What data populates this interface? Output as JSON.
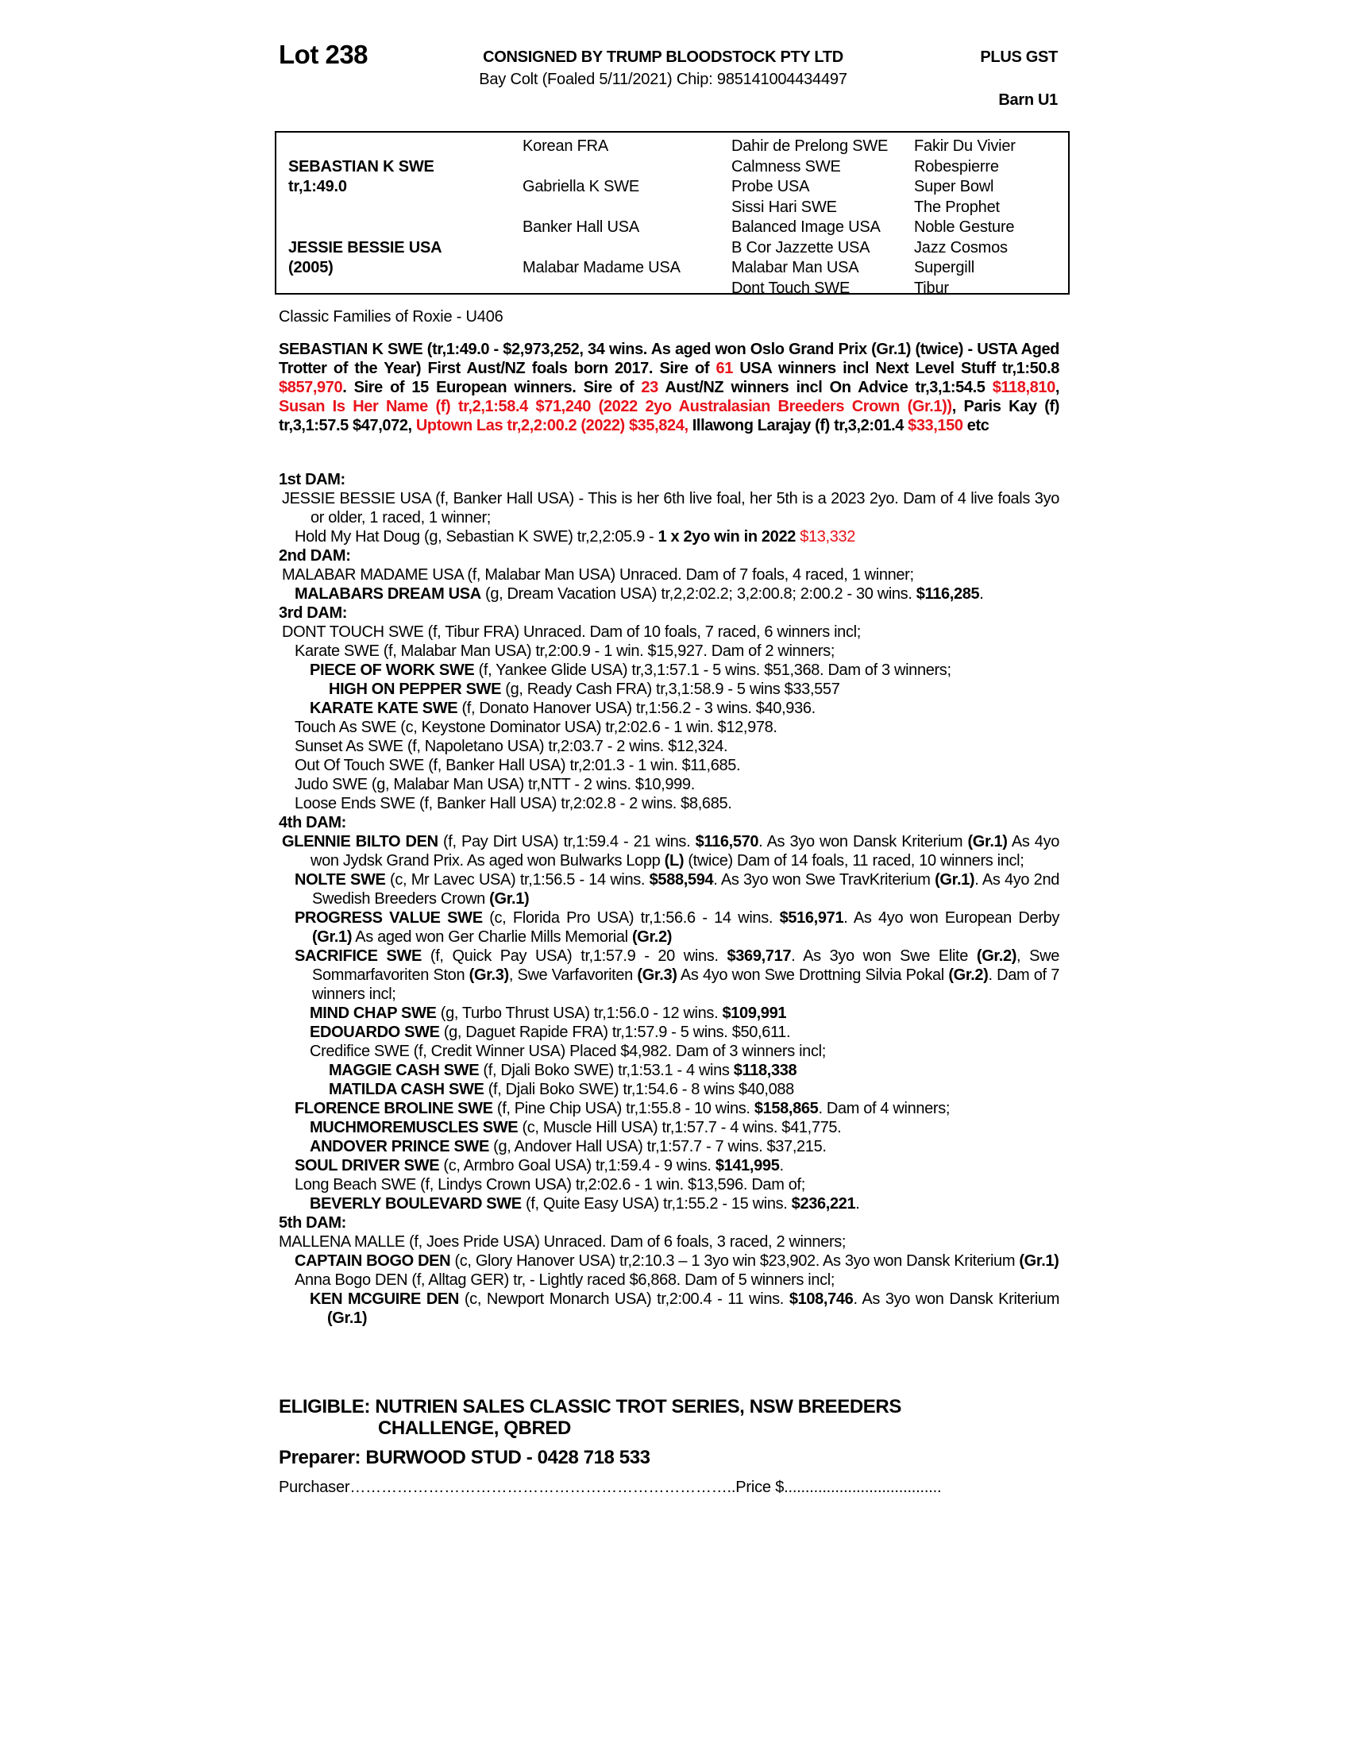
{
  "header": {
    "lot": "Lot 238",
    "consignor": "CONSIGNED BY TRUMP BLOODSTOCK PTY LTD",
    "gst": "PLUS GST",
    "description": "Bay Colt (Foaled 5/11/2021) Chip: 985141004434497",
    "barn": "Barn U1"
  },
  "pedigree": {
    "sire": [
      "SEBASTIAN K SWE",
      "tr,1:49.0"
    ],
    "dam": [
      "JESSIE BESSIE USA",
      "(2005)"
    ],
    "gen2": [
      "Korean FRA",
      "Gabriella K SWE",
      "Banker Hall USA",
      "Malabar Madame USA"
    ],
    "gen3": [
      "Dahir de Prelong SWE",
      "Calmness SWE",
      "Probe USA",
      "Sissi Hari SWE",
      "Balanced Image USA",
      "B Cor Jazzette USA",
      "Malabar Man USA",
      "Dont Touch SWE"
    ],
    "gen4": [
      "Fakir Du Vivier",
      "Robespierre",
      "Super Bowl",
      "The Prophet",
      "Noble Gesture",
      "Jazz Cosmos",
      "Supergill",
      "Tibur"
    ]
  },
  "family": "Classic Families of Roxie - U406",
  "sire_paragraph": [
    {
      "t": "SEBASTIAN K SWE (tr,1:49.0 - $2,973,252, 34 wins. As aged won Oslo Grand Prix (Gr.1) (twice) - USTA Aged Trotter of the Year) First Aust/NZ foals born 2017. Sire of "
    },
    {
      "t": "61",
      "s": "r"
    },
    {
      "t": " USA winners incl Next Level Stuff tr,1:50.8 "
    },
    {
      "t": "$857,970",
      "s": "r"
    },
    {
      "t": ". Sire of 15 European winners. Sire of "
    },
    {
      "t": "23",
      "s": "r"
    },
    {
      "t": " Aust/NZ winners incl On Advice tr,3,1:54.5 "
    },
    {
      "t": "$118,810",
      "s": "r"
    },
    {
      "t": ", "
    },
    {
      "t": "Susan Is Her Name (f) tr,2,1:58.4 $71,240 (2022 2yo Australasian Breeders Crown (Gr.1))",
      "s": "r"
    },
    {
      "t": ", Paris Kay (f) tr,3,1:57.5 $47,072, "
    },
    {
      "t": "Uptown Las tr,2,2:00.2 (2022) $35,824,",
      "s": "r"
    },
    {
      "t": " Illawong Larajay (f) tr,3,2:01.4 "
    },
    {
      "t": "$33,150",
      "s": "r"
    },
    {
      "t": " etc"
    }
  ],
  "sections": [
    {
      "heading": "1st DAM:",
      "entries": [
        {
          "level": 0,
          "segs": [
            {
              "t": "JESSIE BESSIE USA (f, Banker Hall USA) - This is her 6th live foal, her 5th is a 2023 2yo. Dam of 4 live foals 3yo or older, 1 raced, 1 winner;"
            }
          ]
        },
        {
          "level": 1,
          "segs": [
            {
              "t": "Hold My Hat Doug (g, Sebastian K SWE) tr,2,2:05.9 - "
            },
            {
              "t": "1 x 2yo win in 2022",
              "s": "b"
            },
            {
              "t": " "
            },
            {
              "t": "$13,332",
              "s": "r"
            }
          ]
        }
      ]
    },
    {
      "heading": "2nd DAM:",
      "entries": [
        {
          "level": 0,
          "segs": [
            {
              "t": "MALABAR MADAME USA (f, Malabar Man USA) Unraced. Dam of 7 foals, 4 raced, 1 winner;"
            }
          ]
        },
        {
          "level": 1,
          "segs": [
            {
              "t": "MALABARS DREAM USA",
              "s": "b"
            },
            {
              "t": " (g, Dream Vacation USA) tr,2,2:02.2; 3,2:00.8; 2:00.2 - 30 wins. "
            },
            {
              "t": "$116,285",
              "s": "b"
            },
            {
              "t": "."
            }
          ]
        }
      ]
    },
    {
      "heading": "3rd DAM:",
      "entries": [
        {
          "level": 0,
          "segs": [
            {
              "t": "DONT TOUCH SWE (f, Tibur FRA) Unraced. Dam of 10 foals, 7 raced, 6 winners incl;"
            }
          ]
        },
        {
          "level": 1,
          "segs": [
            {
              "t": "Karate SWE (f, Malabar Man USA) tr,2:00.9 - 1 win. $15,927. Dam of 2 winners;"
            }
          ]
        },
        {
          "level": 2,
          "segs": [
            {
              "t": "PIECE OF WORK SWE",
              "s": "b"
            },
            {
              "t": " (f, Yankee Glide USA) tr,3,1:57.1 - 5 wins. $51,368. Dam of 3 winners;"
            }
          ]
        },
        {
          "level": 3,
          "segs": [
            {
              "t": "HIGH ON PEPPER SWE",
              "s": "b"
            },
            {
              "t": " (g, Ready Cash FRA) tr,3,1:58.9 - 5 wins $33,557"
            }
          ]
        },
        {
          "level": 2,
          "segs": [
            {
              "t": "KARATE KATE SWE",
              "s": "b"
            },
            {
              "t": " (f, Donato Hanover USA) tr,1:56.2 - 3 wins. $40,936."
            }
          ]
        },
        {
          "level": 1,
          "segs": [
            {
              "t": "Touch As SWE (c, Keystone Dominator USA) tr,2:02.6 - 1 win. $12,978."
            }
          ]
        },
        {
          "level": 1,
          "segs": [
            {
              "t": "Sunset As SWE (f, Napoletano USA) tr,2:03.7 - 2 wins. $12,324."
            }
          ]
        },
        {
          "level": 1,
          "segs": [
            {
              "t": "Out Of Touch SWE (f, Banker Hall USA) tr,2:01.3 - 1 win. $11,685."
            }
          ]
        },
        {
          "level": 1,
          "segs": [
            {
              "t": "Judo SWE (g, Malabar Man USA) tr,NTT - 2 wins. $10,999."
            }
          ]
        },
        {
          "level": 1,
          "segs": [
            {
              "t": "Loose Ends SWE (f, Banker Hall USA) tr,2:02.8 - 2 wins. $8,685."
            }
          ]
        }
      ]
    },
    {
      "heading": "4th DAM:",
      "entries": [
        {
          "level": 0,
          "segs": [
            {
              "t": "GLENNIE BILTO DEN",
              "s": "b"
            },
            {
              "t": " (f, Pay Dirt USA) tr,1:59.4 - 21 wins. "
            },
            {
              "t": "$116,570",
              "s": "b"
            },
            {
              "t": ". As 3yo won Dansk Kriterium "
            },
            {
              "t": "(Gr.1)",
              "s": "b"
            },
            {
              "t": " As 4yo won Jydsk Grand Prix. As aged won Bulwarks Lopp "
            },
            {
              "t": "(L)",
              "s": "b"
            },
            {
              "t": " (twice) Dam of 14 foals, 11 raced, 10 winners incl;"
            }
          ]
        },
        {
          "level": 1,
          "segs": [
            {
              "t": "NOLTE SWE",
              "s": "b"
            },
            {
              "t": " (c, Mr Lavec USA) tr,1:56.5 - 14 wins. "
            },
            {
              "t": "$588,594",
              "s": "b"
            },
            {
              "t": ". As 3yo won Swe TravKriterium "
            },
            {
              "t": "(Gr.1)",
              "s": "b"
            },
            {
              "t": ". As 4yo 2nd Swedish Breeders Crown "
            },
            {
              "t": "(Gr.1)",
              "s": "b"
            }
          ]
        },
        {
          "level": 1,
          "segs": [
            {
              "t": "PROGRESS VALUE SWE",
              "s": "b"
            },
            {
              "t": " (c, Florida Pro USA) tr,1:56.6 - 14 wins. "
            },
            {
              "t": "$516,971",
              "s": "b"
            },
            {
              "t": ". As 4yo won European Derby "
            },
            {
              "t": "(Gr.1)",
              "s": "b"
            },
            {
              "t": " As aged won Ger Charlie Mills Memorial "
            },
            {
              "t": "(Gr.2)",
              "s": "b"
            }
          ]
        },
        {
          "level": 1,
          "segs": [
            {
              "t": "SACRIFICE SWE",
              "s": "b"
            },
            {
              "t": " (f, Quick Pay USA) tr,1:57.9 - 20 wins. "
            },
            {
              "t": "$369,717",
              "s": "b"
            },
            {
              "t": ". As 3yo won Swe Elite "
            },
            {
              "t": "(Gr.2)",
              "s": "b"
            },
            {
              "t": ", Swe Sommarfavoriten Ston "
            },
            {
              "t": "(Gr.3)",
              "s": "b"
            },
            {
              "t": ", Swe Varfavoriten "
            },
            {
              "t": "(Gr.3)",
              "s": "b"
            },
            {
              "t": " As 4yo won Swe Drottning Silvia Pokal "
            },
            {
              "t": "(Gr.2)",
              "s": "b"
            },
            {
              "t": ". Dam of 7 winners incl;"
            }
          ]
        },
        {
          "level": 2,
          "segs": [
            {
              "t": "MIND CHAP SWE",
              "s": "b"
            },
            {
              "t": " (g, Turbo Thrust USA) tr,1:56.0 - 12 wins. "
            },
            {
              "t": "$109,991",
              "s": "b"
            }
          ]
        },
        {
          "level": 2,
          "segs": [
            {
              "t": "EDOUARDO SWE",
              "s": "b"
            },
            {
              "t": " (g, Daguet Rapide FRA) tr,1:57.9 - 5 wins. $50,611."
            }
          ]
        },
        {
          "level": 2,
          "segs": [
            {
              "t": "Credifice SWE (f, Credit Winner USA) Placed $4,982. Dam of 3 winners incl;"
            }
          ]
        },
        {
          "level": 3,
          "segs": [
            {
              "t": "MAGGIE CASH SWE",
              "s": "b"
            },
            {
              "t": " (f, Djali Boko SWE) tr,1:53.1 - 4 wins "
            },
            {
              "t": "$118,338",
              "s": "b"
            }
          ]
        },
        {
          "level": 3,
          "segs": [
            {
              "t": "MATILDA CASH SWE",
              "s": "b"
            },
            {
              "t": " (f, Djali Boko SWE) tr,1:54.6 - 8 wins $40,088"
            }
          ]
        },
        {
          "level": 1,
          "segs": [
            {
              "t": "FLORENCE BROLINE SWE",
              "s": "b"
            },
            {
              "t": " (f, Pine Chip USA) tr,1:55.8 - 10 wins. "
            },
            {
              "t": "$158,865",
              "s": "b"
            },
            {
              "t": ". Dam of 4 winners;"
            }
          ]
        },
        {
          "level": 2,
          "segs": [
            {
              "t": "MUCHMOREMUSCLES SWE",
              "s": "b"
            },
            {
              "t": " (c, Muscle Hill USA) tr,1:57.7 - 4 wins. $41,775."
            }
          ]
        },
        {
          "level": 2,
          "segs": [
            {
              "t": "ANDOVER PRINCE SWE",
              "s": "b"
            },
            {
              "t": " (g, Andover Hall USA) tr,1:57.7 - 7 wins. $37,215."
            }
          ]
        },
        {
          "level": 1,
          "segs": [
            {
              "t": "SOUL DRIVER SWE",
              "s": "b"
            },
            {
              "t": " (c, Armbro Goal USA) tr,1:59.4 - 9 wins. "
            },
            {
              "t": "$141,995",
              "s": "b"
            },
            {
              "t": "."
            }
          ]
        },
        {
          "level": 1,
          "segs": [
            {
              "t": "Long Beach SWE (f, Lindys Crown USA) tr,2:02.6 - 1 win. $13,596. Dam of;"
            }
          ]
        },
        {
          "level": 2,
          "segs": [
            {
              "t": "BEVERLY BOULEVARD SWE",
              "s": "b"
            },
            {
              "t": " (f, Quite Easy USA) tr,1:55.2 - 15 wins. "
            },
            {
              "t": "$236,221",
              "s": "b"
            },
            {
              "t": "."
            }
          ]
        }
      ]
    },
    {
      "heading": "5th DAM:",
      "entries": [
        {
          "level": "0a",
          "segs": [
            {
              "t": "MALLENA MALLE (f, Joes Pride USA) Unraced. Dam of 6 foals, 3 raced, 2 winners;"
            }
          ]
        },
        {
          "level": 1,
          "segs": [
            {
              "t": "CAPTAIN BOGO DEN",
              "s": "b"
            },
            {
              "t": " (c, Glory Hanover USA) tr,2:10.3 – 1 3yo win $23,902. As 3yo won Dansk Kriterium "
            },
            {
              "t": "(Gr.1)",
              "s": "b"
            }
          ]
        },
        {
          "level": 1,
          "segs": [
            {
              "t": "Anna Bogo DEN (f, Alltag GER) tr, - Lightly raced $6,868. Dam of 5 winners incl;"
            }
          ]
        },
        {
          "level": 2,
          "segs": [
            {
              "t": "KEN MCGUIRE DEN",
              "s": "b"
            },
            {
              "t": " (c, Newport Monarch USA) tr,2:00.4 - 11 wins. "
            },
            {
              "t": "$108,746",
              "s": "b"
            },
            {
              "t": ". As 3yo won Dansk Kriterium "
            },
            {
              "t": "(Gr.1)",
              "s": "b"
            }
          ]
        }
      ]
    }
  ],
  "footer": {
    "eligible_line1": "ELIGIBLE: NUTRIEN SALES CLASSIC TROT SERIES, NSW BREEDERS",
    "eligible_line2": "CHALLENGE, QBRED",
    "preparer": "Preparer: BURWOOD STUD - 0428 718 533",
    "purchaser": "Purchaser………………………………………………………………..Price $.....................................",
    "colors": {
      "highlight": "#e8121a",
      "text": "#000000"
    }
  }
}
